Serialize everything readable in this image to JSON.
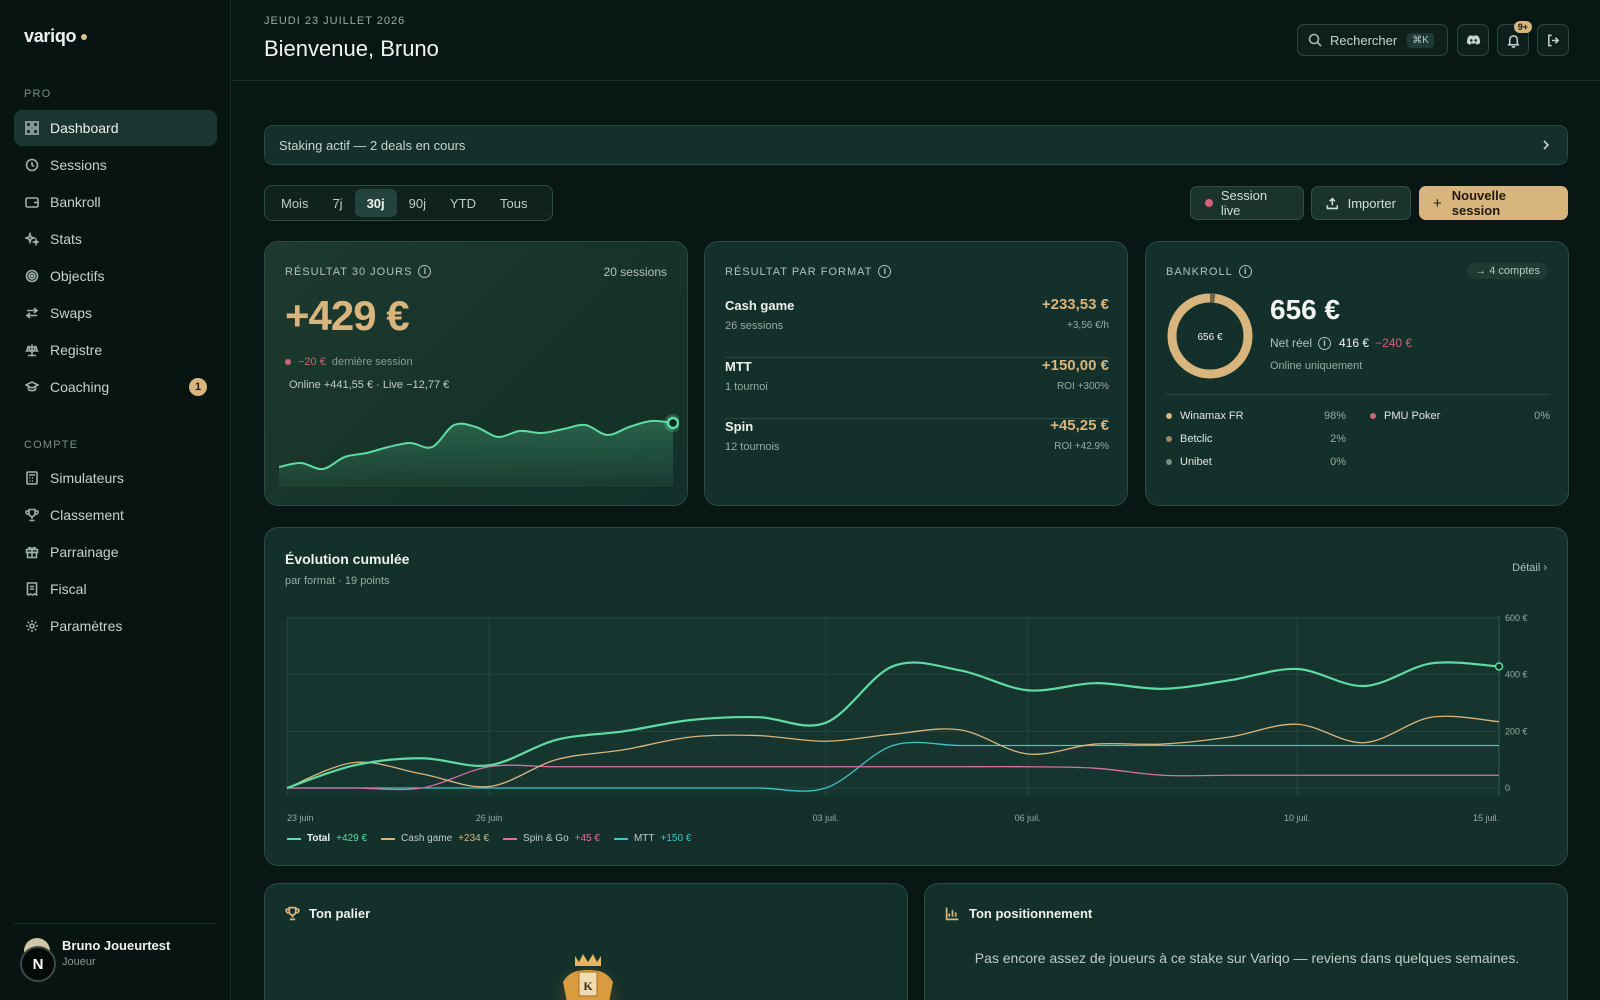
{
  "sidebar": {
    "logo": "variqo",
    "section_pro": "PRO",
    "section_account": "COMPTE",
    "items": [
      {
        "label": "Dashboard",
        "icon": "dashboard-icon"
      },
      {
        "label": "Sessions",
        "icon": "history-icon"
      },
      {
        "label": "Bankroll",
        "icon": "wallet-icon"
      },
      {
        "label": "Stats",
        "icon": "sparkles-icon"
      },
      {
        "label": "Objectifs",
        "icon": "target-icon"
      },
      {
        "label": "Swaps",
        "icon": "swap-icon"
      },
      {
        "label": "Registre",
        "icon": "scale-icon"
      },
      {
        "label": "Coaching",
        "icon": "graduation-cap-icon",
        "badge": "1"
      }
    ],
    "account_items": [
      {
        "label": "Simulateurs",
        "icon": "calculator-icon"
      },
      {
        "label": "Classement",
        "icon": "trophy-icon"
      },
      {
        "label": "Parrainage",
        "icon": "gift-icon"
      },
      {
        "label": "Fiscal",
        "icon": "receipt-icon"
      },
      {
        "label": "Paramètres",
        "icon": "gear-icon"
      }
    ],
    "user": {
      "initial": "N",
      "name": "Bruno Joueurtest",
      "role": "Joueur"
    }
  },
  "header": {
    "date": "JEUDI 23 JUILLET 2026",
    "title": "Bienvenue, Bruno",
    "search_label": "Rechercher",
    "search_shortcut": "⌘K",
    "notif_count": "9+"
  },
  "banner": {
    "text": "Staking actif — 2 deals en cours"
  },
  "periods": [
    "Mois",
    "7j",
    "30j",
    "90j",
    "YTD",
    "Tous"
  ],
  "active_period": "30j",
  "actions": {
    "live": "Session live",
    "import": "Importer",
    "new": "Nouvelle session"
  },
  "result_card": {
    "label": "RÉSULTAT 30 JOURS",
    "sessions": "20 sessions",
    "value": "+429 €",
    "last_value": "−20 €",
    "last_label": "dernière session",
    "split": "Online +441,55 € · Live −12,77 €",
    "sparkline": [
      20,
      24,
      18,
      30,
      34,
      40,
      44,
      40,
      62,
      60,
      50,
      56,
      54,
      58,
      62,
      52,
      60,
      66,
      64
    ]
  },
  "format_card": {
    "label": "RÉSULTAT PAR FORMAT",
    "rows": [
      {
        "name": "Cash game",
        "sub": "26 sessions",
        "value": "+233,53 €",
        "detail": "+3,56 €/h"
      },
      {
        "name": "MTT",
        "sub": "1 tournoi",
        "value": "+150,00 €",
        "detail": "ROI +300%"
      },
      {
        "name": "Spin",
        "sub": "12 tournois",
        "value": "+45,25 €",
        "detail": "ROI +42.9%"
      }
    ]
  },
  "bankroll_card": {
    "label": "BANKROLL",
    "accounts_link": "→ 4 comptes",
    "donut_label": "656 €",
    "value": "656 €",
    "net_label": "Net réel",
    "net_value": "416 €",
    "net_delta": "−240 €",
    "note": "Online uniquement",
    "accounts": [
      {
        "name": "Winamax FR",
        "pct": "98%",
        "color": "#d8b57d"
      },
      {
        "name": "PMU Poker",
        "pct": "0%",
        "color": "#d2647a"
      },
      {
        "name": "Betclic",
        "pct": "2%",
        "color": "#a08a63"
      },
      {
        "name": "Unibet",
        "pct": "0%",
        "color": "#7c8f88"
      }
    ]
  },
  "evolution_card": {
    "title": "Évolution cumulée",
    "subtitle": "par format · 19 points",
    "detail_link": "Détail"
  },
  "chart_data": {
    "type": "line",
    "x": [
      "23 juin",
      "24 juin",
      "25 juin",
      "26 juin",
      "27 juin",
      "29 juin",
      "01 juil.",
      "02 juil.",
      "03 juil.",
      "04 juil.",
      "05 juil.",
      "06 juil.",
      "07 juil.",
      "08 juil.",
      "09 juil.",
      "10 juil.",
      "12 juil.",
      "14 juil.",
      "15 juil."
    ],
    "x_ticks": [
      "23 juin",
      "26 juin",
      "03 juil.",
      "06 juil.",
      "10 juil.",
      "15 juil."
    ],
    "y_ticks": [
      "0",
      "200 €",
      "400 €",
      "600 €"
    ],
    "ylim": [
      0,
      600
    ],
    "grid": true,
    "series": [
      {
        "name": "Total",
        "color": "#5fdba3",
        "values": [
          0,
          80,
          105,
          80,
          170,
          200,
          240,
          250,
          230,
          430,
          415,
          345,
          370,
          350,
          380,
          420,
          360,
          440,
          429
        ]
      },
      {
        "name": "Cash game",
        "color": "#d8b57d",
        "values": [
          0,
          90,
          50,
          5,
          100,
          135,
          180,
          185,
          165,
          190,
          205,
          120,
          155,
          155,
          180,
          225,
          160,
          250,
          234
        ]
      },
      {
        "name": "Spin & Go",
        "color": "#d86fa6",
        "values": [
          0,
          0,
          0,
          75,
          75,
          75,
          75,
          75,
          75,
          75,
          75,
          75,
          70,
          45,
          45,
          45,
          45,
          45,
          45
        ]
      },
      {
        "name": "MTT",
        "color": "#3fc6c9",
        "values": [
          0,
          0,
          0,
          0,
          0,
          0,
          0,
          0,
          0,
          150,
          150,
          150,
          150,
          150,
          150,
          150,
          150,
          150,
          150
        ]
      }
    ],
    "legend": [
      {
        "name": "Total",
        "value": "+429 €",
        "color": "#5fdba3"
      },
      {
        "name": "Cash game",
        "value": "+234 €",
        "color": "#d8b57d"
      },
      {
        "name": "Spin & Go",
        "value": "+45 €",
        "color": "#d86fa6"
      },
      {
        "name": "MTT",
        "value": "+150 €",
        "color": "#3fc6c9"
      }
    ]
  },
  "tier_card": {
    "title": "Ton palier",
    "emblem_letter": "K"
  },
  "position_card": {
    "title": "Ton positionnement",
    "message": "Pas encore assez de joueurs à ce stake sur Variqo — reviens dans quelques semaines."
  }
}
